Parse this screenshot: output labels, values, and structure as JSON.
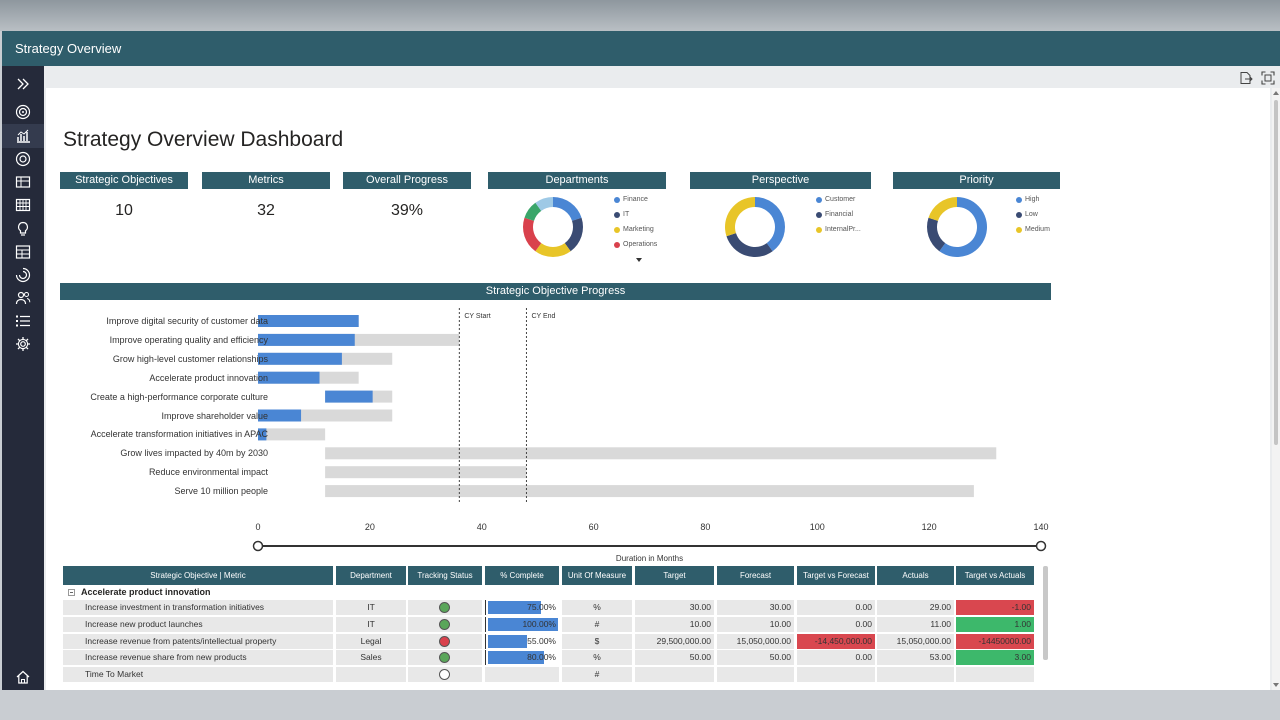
{
  "app": {
    "title": "Strategy Overview"
  },
  "nav": {
    "items": [
      {
        "icon": "expand-icon"
      },
      {
        "icon": "target-icon"
      },
      {
        "icon": "chart-icon"
      },
      {
        "icon": "objective-icon"
      },
      {
        "icon": "scorecard-icon"
      },
      {
        "icon": "calendar-grid-icon"
      },
      {
        "icon": "lightbulb-icon"
      },
      {
        "icon": "table-icon"
      },
      {
        "icon": "radial-icon"
      },
      {
        "icon": "people-icon"
      },
      {
        "icon": "list-icon"
      },
      {
        "icon": "gear-icon"
      }
    ],
    "bottom_icon": "home-icon"
  },
  "toolbar": {
    "icons": [
      "export-icon",
      "focus-mode-icon"
    ]
  },
  "dashboard": {
    "title": "Strategy Overview Dashboard",
    "kpis": [
      {
        "label": "Strategic Objectives",
        "value": "10"
      },
      {
        "label": "Metrics",
        "value": "32"
      },
      {
        "label": "Overall Progress",
        "value": "39%"
      }
    ]
  },
  "chart_data": [
    {
      "type": "pie",
      "title": "Departments",
      "labels": [
        "Finance",
        "IT",
        "Marketing",
        "Operations"
      ],
      "slices": [
        {
          "name": "Finance",
          "value": 20,
          "color": "#4a86d4"
        },
        {
          "name": "IT",
          "value": 20,
          "color": "#3a4b73"
        },
        {
          "name": "Marketing",
          "value": 20,
          "color": "#e8c528"
        },
        {
          "name": "Operations",
          "value": 20,
          "color": "#d9414c"
        },
        {
          "name": "",
          "value": 10,
          "color": "#3aa66a"
        },
        {
          "name": "",
          "value": 10,
          "color": "#9ec9e6"
        }
      ],
      "legend": "right"
    },
    {
      "type": "pie",
      "title": "Perspective",
      "labels": [
        "Customer",
        "Financial",
        "InternalPr..."
      ],
      "slices": [
        {
          "name": "Customer",
          "value": 40,
          "color": "#4a86d4"
        },
        {
          "name": "Financial",
          "value": 30,
          "color": "#3a4b73"
        },
        {
          "name": "InternalPr...",
          "value": 30,
          "color": "#e8c528"
        }
      ],
      "legend": "right"
    },
    {
      "type": "pie",
      "title": "Priority",
      "labels": [
        "High",
        "Low",
        "Medium"
      ],
      "slices": [
        {
          "name": "High",
          "value": 60,
          "color": "#4a86d4"
        },
        {
          "name": "Low",
          "value": 20,
          "color": "#3a4b73"
        },
        {
          "name": "Medium",
          "value": 20,
          "color": "#e8c528"
        }
      ],
      "legend": "right"
    },
    {
      "type": "bar",
      "title": "Strategic Objective Progress",
      "xlabel": "Duration in Months",
      "xlim": [
        0,
        140
      ],
      "xticks": [
        0,
        20,
        40,
        60,
        80,
        100,
        120,
        140
      ],
      "markers": [
        {
          "label": "CY Start",
          "x": 36
        },
        {
          "label": "CY End",
          "x": 48
        }
      ],
      "categories": [
        "Improve digital security of customer data",
        "Improve operating quality and efficiency",
        "Grow high-level customer relationships",
        "Accelerate product innovation",
        "Create a high-performance corporate culture",
        "Improve shareholder value",
        "Accelerate transformation initiatives in APAC",
        "Grow lives impacted by 40m by 2030",
        "Reduce environmental impact",
        "Serve 10 million people"
      ],
      "series": [
        {
          "name": "",
          "color": "#d9d9d9",
          "start": [
            0,
            0,
            0,
            0,
            12,
            0,
            0,
            12,
            12,
            12
          ],
          "end": [
            18,
            36,
            24,
            18,
            24,
            24,
            12,
            132,
            48,
            128
          ]
        },
        {
          "name": "",
          "color": "#4a86d4",
          "start": [
            0,
            0,
            0,
            0,
            12,
            0,
            0,
            12,
            12,
            12
          ],
          "end": [
            18,
            17.3,
            15,
            11,
            20.5,
            7.7,
            1.5,
            12,
            12,
            12
          ]
        }
      ]
    }
  ],
  "table": {
    "headers": [
      "Strategic Objective | Metric",
      "Department",
      "Tracking Status",
      "% Complete",
      "Unit Of Measure",
      "Target",
      "Forecast",
      "Target vs Forecast",
      "Actuals",
      "Target vs Actuals"
    ],
    "group": "Accelerate product innovation",
    "rows": [
      {
        "metric": "Increase investment in transformation initiatives",
        "dept": "IT",
        "status": "#5aa65a",
        "pct": "75.00%",
        "pct_value": 75,
        "uom": "%",
        "target": "30.00",
        "forecast": "30.00",
        "tvf": "0.00",
        "tvf_color": "",
        "actuals": "29.00",
        "tva": "-1.00",
        "tva_color": "#d9474f"
      },
      {
        "metric": "Increase new product launches",
        "dept": "IT",
        "status": "#5aa65a",
        "pct": "100.00%",
        "pct_value": 100,
        "uom": "#",
        "target": "10.00",
        "forecast": "10.00",
        "tvf": "0.00",
        "tvf_color": "",
        "actuals": "11.00",
        "tva": "1.00",
        "tva_color": "#3db86b"
      },
      {
        "metric": "Increase revenue from patents/intellectual property",
        "dept": "Legal",
        "status": "#d9414c",
        "pct": "55.00%",
        "pct_value": 55,
        "uom": "$",
        "target": "29,500,000.00",
        "forecast": "15,050,000.00",
        "tvf": "-14,450,000.00",
        "tvf_color": "#d9474f",
        "actuals": "15,050,000.00",
        "tva": "-14450000.00",
        "tva_color": "#d9474f"
      },
      {
        "metric": "Increase revenue share from new products",
        "dept": "Sales",
        "status": "#5aa65a",
        "pct": "80.00%",
        "pct_value": 80,
        "uom": "%",
        "target": "50.00",
        "forecast": "50.00",
        "tvf": "0.00",
        "tvf_color": "",
        "actuals": "53.00",
        "tva": "3.00",
        "tva_color": "#3db86b"
      },
      {
        "metric": "Time To Market",
        "dept": "",
        "status": "",
        "pct": "",
        "pct_value": 0,
        "uom": "#",
        "target": "",
        "forecast": "",
        "tvf": "",
        "tvf_color": "",
        "actuals": "",
        "tva": "",
        "tva_color": ""
      }
    ]
  }
}
